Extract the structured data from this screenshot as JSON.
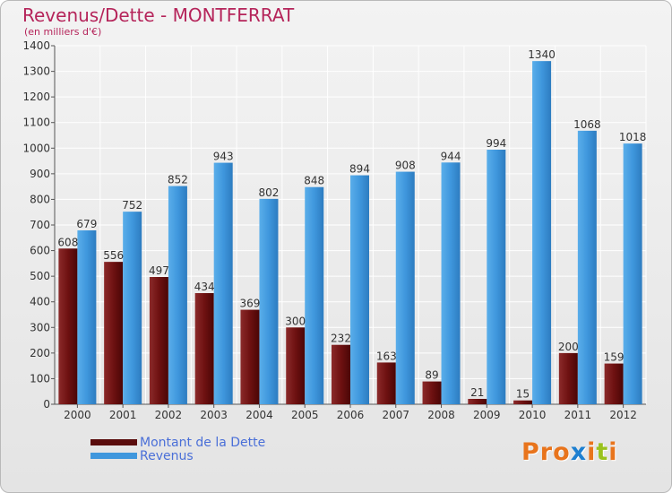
{
  "header": {
    "title": "Revenus/Dette - MONTFERRAT",
    "subtitle": "(en milliers d'€)"
  },
  "colors": {
    "debt": "#6e1111",
    "revenue": "#3f97dd",
    "title": "#b5245a",
    "legend_text": "#4a6fd8"
  },
  "legend": {
    "items": [
      {
        "label": "Montant de la Dette",
        "color": "#6e1111"
      },
      {
        "label": "Revenus",
        "color": "#3f97dd"
      }
    ]
  },
  "logo": {
    "text": "Proxiti",
    "letter_colors": [
      "#e8741c",
      "#e8741c",
      "#e8741c",
      "#1d7fd0",
      "#e8741c",
      "#9ac21e",
      "#e8741c"
    ]
  },
  "chart_data": {
    "type": "bar",
    "categories": [
      "2000",
      "2001",
      "2002",
      "2003",
      "2004",
      "2005",
      "2006",
      "2007",
      "2008",
      "2009",
      "2010",
      "2011",
      "2012"
    ],
    "series": [
      {
        "name": "Montant de la Dette",
        "values": [
          608,
          556,
          497,
          434,
          369,
          300,
          232,
          163,
          89,
          21,
          15,
          200,
          159
        ]
      },
      {
        "name": "Revenus",
        "values": [
          679,
          752,
          852,
          943,
          802,
          848,
          894,
          908,
          944,
          994,
          1340,
          1068,
          1018
        ]
      }
    ],
    "ylim": [
      0,
      1400
    ],
    "yticks": [
      0,
      100,
      200,
      300,
      400,
      500,
      600,
      700,
      800,
      900,
      1000,
      1100,
      1200,
      1300,
      1400
    ],
    "grid": true,
    "legend_position": "bottom-left"
  }
}
